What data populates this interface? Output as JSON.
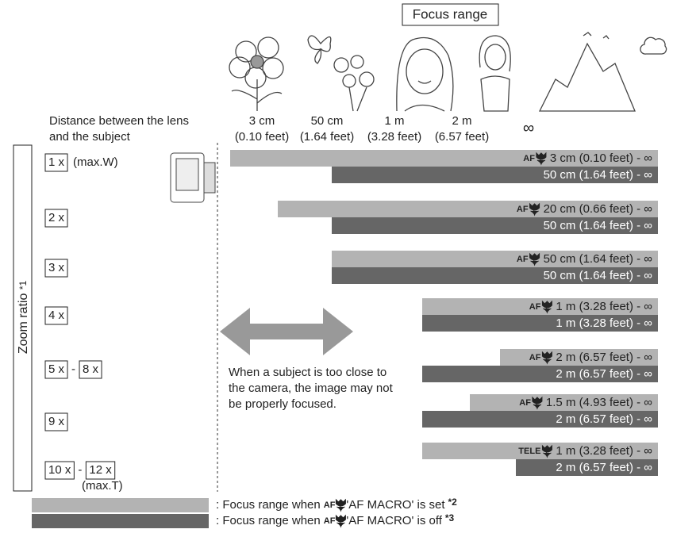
{
  "header": {
    "title": "Focus range"
  },
  "distance_label": [
    "Distance between the lens",
    "and the subject"
  ],
  "distances": [
    [
      "3 cm",
      "(0.10 feet)"
    ],
    [
      "50 cm",
      "(1.64 feet)"
    ],
    [
      "1 m",
      "(3.28 feet)"
    ],
    [
      "2 m",
      "(6.57 feet)"
    ],
    [
      "∞"
    ]
  ],
  "zoom_axis": {
    "label": "Zoom ratio",
    "note": "*1"
  },
  "rows": [
    {
      "zoom": [
        "1 x"
      ],
      "zoom_note": "(max.W)",
      "macro_prefix": "AF",
      "macro": "3 cm (0.10 feet) - ∞",
      "normal": "50 cm (1.64 feet) - ∞"
    },
    {
      "zoom": [
        "2 x"
      ],
      "macro_prefix": "AF",
      "macro": "20 cm (0.66 feet) - ∞",
      "normal": "50 cm (1.64 feet) - ∞"
    },
    {
      "zoom": [
        "3 x"
      ],
      "macro_prefix": "AF",
      "macro": "50 cm (1.64 feet) - ∞",
      "normal": "50 cm (1.64 feet) - ∞"
    },
    {
      "zoom": [
        "4 x"
      ],
      "macro_prefix": "AF",
      "macro": "1 m (3.28 feet) - ∞",
      "normal": "1 m (3.28 feet) - ∞"
    },
    {
      "zoom": [
        "5 x",
        "8 x"
      ],
      "separator": "-",
      "macro_prefix": "AF",
      "macro": "2 m (6.57 feet) - ∞",
      "normal": "2 m (6.57 feet) - ∞"
    },
    {
      "zoom": [
        "9 x"
      ],
      "macro_prefix": "AF",
      "macro": "1.5 m (4.93 feet) - ∞",
      "normal": "2 m (6.57 feet) - ∞"
    },
    {
      "zoom": [
        "10 x",
        "12 x"
      ],
      "separator": "-",
      "zoom_note": "(max.T)",
      "macro_prefix": "TELE",
      "macro": "1 m (3.28 feet) - ∞",
      "normal": "2 m (6.57 feet) - ∞"
    }
  ],
  "note": [
    "When a subject is too close to",
    "the camera, the image may not",
    "be properly focused."
  ],
  "legend": [
    {
      "pre": ": Focus range when",
      "prefix": "AF",
      "post": "'AF MACRO' is set",
      "mark": "*2"
    },
    {
      "pre": ": Focus range when",
      "prefix": "AF",
      "post": "'AF MACRO' is off",
      "mark": "*3"
    }
  ]
}
